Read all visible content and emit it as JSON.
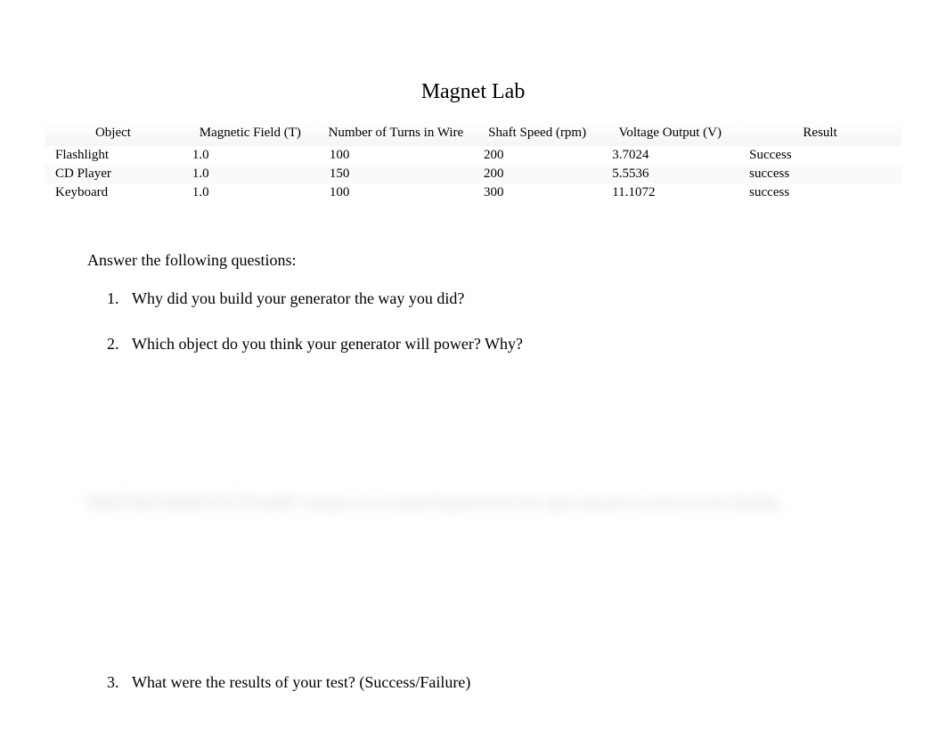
{
  "title": "Magnet Lab",
  "table": {
    "columns": [
      "Object",
      "Magnetic Field (T)",
      "Number of Turns in Wire",
      "Shaft Speed (rpm)",
      "Voltage Output (V)",
      "Result"
    ],
    "rows": [
      [
        "Flashlight",
        "1.0",
        "100",
        "200",
        "3.7024",
        "Success"
      ],
      [
        "CD Player",
        "1.0",
        "150",
        "200",
        "5.5536",
        "success"
      ],
      [
        "Keyboard",
        "1.0",
        "100",
        "300",
        "11.1072",
        "success"
      ]
    ],
    "header_bg_gradient_start": "#ffffff",
    "header_bg_gradient_end": "#f5f5f5",
    "row_even_bg": "#fafafa",
    "font_size": 15,
    "column_widths": [
      "16%",
      "16%",
      "18%",
      "15%",
      "16%",
      "19%"
    ]
  },
  "questions": {
    "intro": "Answer the following questions:",
    "items": [
      {
        "number": "1.",
        "text": "Why did you build your generator the way you did?"
      },
      {
        "number": "2.",
        "text": "Which object do you think your generator will power?   Why?"
      },
      {
        "number": "3.",
        "text": "What were the results of your test? (Success/Failure)"
      }
    ],
    "font_size": 18
  },
  "blurred_text": "IIIIIII    IIIII dIIIIIIII IIII IIIvalIIII voltage was reached    figured from the right amount to power to the flashlig",
  "colors": {
    "background": "#ffffff",
    "text": "#000000",
    "blurred_text": "#cccccc"
  },
  "typography": {
    "title_fontsize": 24,
    "body_fontsize": 18,
    "table_fontsize": 15,
    "font_family": "Georgia, Times New Roman, serif"
  }
}
